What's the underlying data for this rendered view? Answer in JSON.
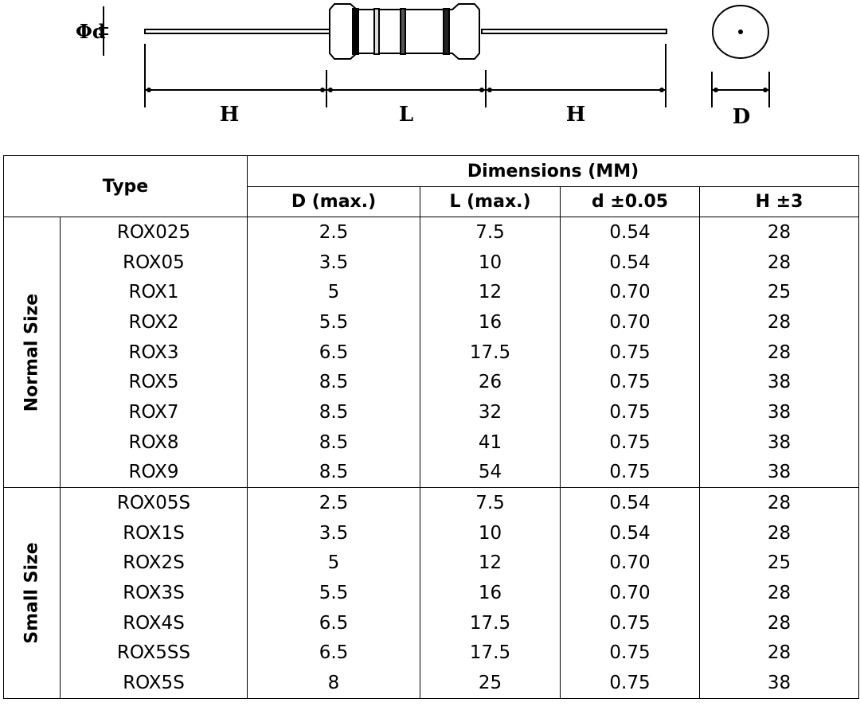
{
  "diagram": {
    "labels": {
      "phi_d": "Φd",
      "h_left": "H",
      "l": "L",
      "h_right": "H",
      "d": "D"
    }
  },
  "table": {
    "type_header": "Type",
    "dimensions_header": "Dimensions (MM)",
    "columns": [
      "D (max.)",
      "L (max.)",
      "d ±0.05",
      "H ±3"
    ],
    "groups": [
      {
        "label": "Normal Size",
        "rows": [
          [
            "ROX025",
            "2.5",
            "7.5",
            "0.54",
            "28"
          ],
          [
            "ROX05",
            "3.5",
            "10",
            "0.54",
            "28"
          ],
          [
            "ROX1",
            "5",
            "12",
            "0.70",
            "25"
          ],
          [
            "ROX2",
            "5.5",
            "16",
            "0.70",
            "28"
          ],
          [
            "ROX3",
            "6.5",
            "17.5",
            "0.75",
            "28"
          ],
          [
            "ROX5",
            "8.5",
            "26",
            "0.75",
            "38"
          ],
          [
            "ROX7",
            "8.5",
            "32",
            "0.75",
            "38"
          ],
          [
            "ROX8",
            "8.5",
            "41",
            "0.75",
            "38"
          ],
          [
            "ROX9",
            "8.5",
            "54",
            "0.75",
            "38"
          ]
        ]
      },
      {
        "label": "Small Size",
        "rows": [
          [
            "ROX05S",
            "2.5",
            "7.5",
            "0.54",
            "28"
          ],
          [
            "ROX1S",
            "3.5",
            "10",
            "0.54",
            "28"
          ],
          [
            "ROX2S",
            "5",
            "12",
            "0.70",
            "25"
          ],
          [
            "ROX3S",
            "5.5",
            "16",
            "0.70",
            "28"
          ],
          [
            "ROX4S",
            "6.5",
            "17.5",
            "0.75",
            "28"
          ],
          [
            "ROX5SS",
            "6.5",
            "17.5",
            "0.75",
            "28"
          ],
          [
            "ROX5S",
            "8",
            "25",
            "0.75",
            "38"
          ]
        ]
      }
    ]
  }
}
